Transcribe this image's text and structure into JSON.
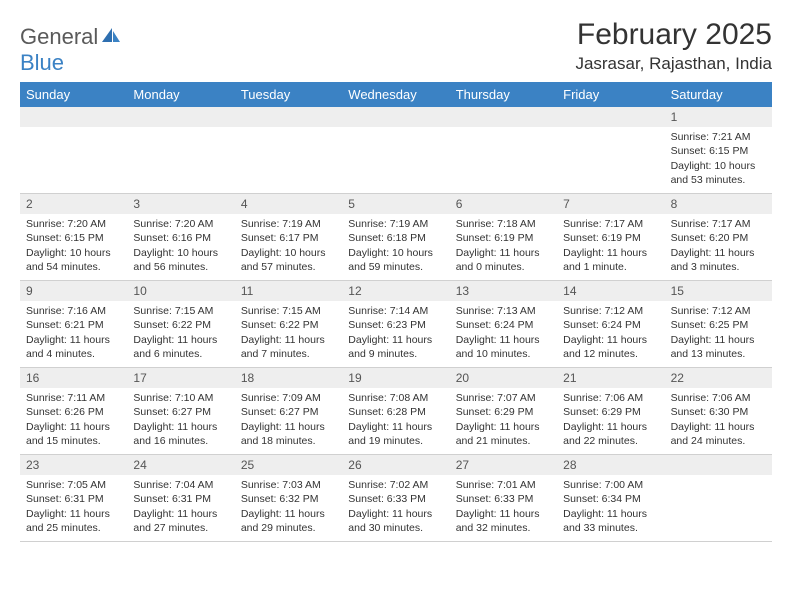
{
  "logo": {
    "general": "General",
    "blue": "Blue"
  },
  "title": "February 2025",
  "location": "Jasrasar, Rajasthan, India",
  "weekdays": [
    "Sunday",
    "Monday",
    "Tuesday",
    "Wednesday",
    "Thursday",
    "Friday",
    "Saturday"
  ],
  "colors": {
    "header_bg": "#3b82c4",
    "daynum_bg": "#eeeeee",
    "text": "#333333",
    "logo_gray": "#5a5a5a",
    "logo_blue": "#3b82c4"
  },
  "weeks": [
    [
      {
        "num": "",
        "sunrise": "",
        "sunset": "",
        "daylight": ""
      },
      {
        "num": "",
        "sunrise": "",
        "sunset": "",
        "daylight": ""
      },
      {
        "num": "",
        "sunrise": "",
        "sunset": "",
        "daylight": ""
      },
      {
        "num": "",
        "sunrise": "",
        "sunset": "",
        "daylight": ""
      },
      {
        "num": "",
        "sunrise": "",
        "sunset": "",
        "daylight": ""
      },
      {
        "num": "",
        "sunrise": "",
        "sunset": "",
        "daylight": ""
      },
      {
        "num": "1",
        "sunrise": "Sunrise: 7:21 AM",
        "sunset": "Sunset: 6:15 PM",
        "daylight": "Daylight: 10 hours and 53 minutes."
      }
    ],
    [
      {
        "num": "2",
        "sunrise": "Sunrise: 7:20 AM",
        "sunset": "Sunset: 6:15 PM",
        "daylight": "Daylight: 10 hours and 54 minutes."
      },
      {
        "num": "3",
        "sunrise": "Sunrise: 7:20 AM",
        "sunset": "Sunset: 6:16 PM",
        "daylight": "Daylight: 10 hours and 56 minutes."
      },
      {
        "num": "4",
        "sunrise": "Sunrise: 7:19 AM",
        "sunset": "Sunset: 6:17 PM",
        "daylight": "Daylight: 10 hours and 57 minutes."
      },
      {
        "num": "5",
        "sunrise": "Sunrise: 7:19 AM",
        "sunset": "Sunset: 6:18 PM",
        "daylight": "Daylight: 10 hours and 59 minutes."
      },
      {
        "num": "6",
        "sunrise": "Sunrise: 7:18 AM",
        "sunset": "Sunset: 6:19 PM",
        "daylight": "Daylight: 11 hours and 0 minutes."
      },
      {
        "num": "7",
        "sunrise": "Sunrise: 7:17 AM",
        "sunset": "Sunset: 6:19 PM",
        "daylight": "Daylight: 11 hours and 1 minute."
      },
      {
        "num": "8",
        "sunrise": "Sunrise: 7:17 AM",
        "sunset": "Sunset: 6:20 PM",
        "daylight": "Daylight: 11 hours and 3 minutes."
      }
    ],
    [
      {
        "num": "9",
        "sunrise": "Sunrise: 7:16 AM",
        "sunset": "Sunset: 6:21 PM",
        "daylight": "Daylight: 11 hours and 4 minutes."
      },
      {
        "num": "10",
        "sunrise": "Sunrise: 7:15 AM",
        "sunset": "Sunset: 6:22 PM",
        "daylight": "Daylight: 11 hours and 6 minutes."
      },
      {
        "num": "11",
        "sunrise": "Sunrise: 7:15 AM",
        "sunset": "Sunset: 6:22 PM",
        "daylight": "Daylight: 11 hours and 7 minutes."
      },
      {
        "num": "12",
        "sunrise": "Sunrise: 7:14 AM",
        "sunset": "Sunset: 6:23 PM",
        "daylight": "Daylight: 11 hours and 9 minutes."
      },
      {
        "num": "13",
        "sunrise": "Sunrise: 7:13 AM",
        "sunset": "Sunset: 6:24 PM",
        "daylight": "Daylight: 11 hours and 10 minutes."
      },
      {
        "num": "14",
        "sunrise": "Sunrise: 7:12 AM",
        "sunset": "Sunset: 6:24 PM",
        "daylight": "Daylight: 11 hours and 12 minutes."
      },
      {
        "num": "15",
        "sunrise": "Sunrise: 7:12 AM",
        "sunset": "Sunset: 6:25 PM",
        "daylight": "Daylight: 11 hours and 13 minutes."
      }
    ],
    [
      {
        "num": "16",
        "sunrise": "Sunrise: 7:11 AM",
        "sunset": "Sunset: 6:26 PM",
        "daylight": "Daylight: 11 hours and 15 minutes."
      },
      {
        "num": "17",
        "sunrise": "Sunrise: 7:10 AM",
        "sunset": "Sunset: 6:27 PM",
        "daylight": "Daylight: 11 hours and 16 minutes."
      },
      {
        "num": "18",
        "sunrise": "Sunrise: 7:09 AM",
        "sunset": "Sunset: 6:27 PM",
        "daylight": "Daylight: 11 hours and 18 minutes."
      },
      {
        "num": "19",
        "sunrise": "Sunrise: 7:08 AM",
        "sunset": "Sunset: 6:28 PM",
        "daylight": "Daylight: 11 hours and 19 minutes."
      },
      {
        "num": "20",
        "sunrise": "Sunrise: 7:07 AM",
        "sunset": "Sunset: 6:29 PM",
        "daylight": "Daylight: 11 hours and 21 minutes."
      },
      {
        "num": "21",
        "sunrise": "Sunrise: 7:06 AM",
        "sunset": "Sunset: 6:29 PM",
        "daylight": "Daylight: 11 hours and 22 minutes."
      },
      {
        "num": "22",
        "sunrise": "Sunrise: 7:06 AM",
        "sunset": "Sunset: 6:30 PM",
        "daylight": "Daylight: 11 hours and 24 minutes."
      }
    ],
    [
      {
        "num": "23",
        "sunrise": "Sunrise: 7:05 AM",
        "sunset": "Sunset: 6:31 PM",
        "daylight": "Daylight: 11 hours and 25 minutes."
      },
      {
        "num": "24",
        "sunrise": "Sunrise: 7:04 AM",
        "sunset": "Sunset: 6:31 PM",
        "daylight": "Daylight: 11 hours and 27 minutes."
      },
      {
        "num": "25",
        "sunrise": "Sunrise: 7:03 AM",
        "sunset": "Sunset: 6:32 PM",
        "daylight": "Daylight: 11 hours and 29 minutes."
      },
      {
        "num": "26",
        "sunrise": "Sunrise: 7:02 AM",
        "sunset": "Sunset: 6:33 PM",
        "daylight": "Daylight: 11 hours and 30 minutes."
      },
      {
        "num": "27",
        "sunrise": "Sunrise: 7:01 AM",
        "sunset": "Sunset: 6:33 PM",
        "daylight": "Daylight: 11 hours and 32 minutes."
      },
      {
        "num": "28",
        "sunrise": "Sunrise: 7:00 AM",
        "sunset": "Sunset: 6:34 PM",
        "daylight": "Daylight: 11 hours and 33 minutes."
      },
      {
        "num": "",
        "sunrise": "",
        "sunset": "",
        "daylight": ""
      }
    ]
  ]
}
